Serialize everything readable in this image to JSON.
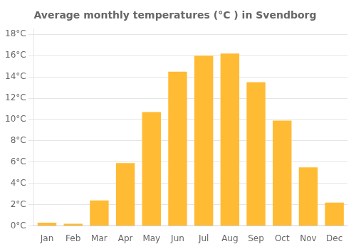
{
  "chart_data": {
    "type": "bar",
    "title": "Average monthly temperatures (°C ) in Svendborg",
    "categories": [
      "Jan",
      "Feb",
      "Mar",
      "Apr",
      "May",
      "Jun",
      "Jul",
      "Aug",
      "Sep",
      "Oct",
      "Nov",
      "Dec"
    ],
    "values": [
      0.3,
      0.2,
      2.4,
      5.9,
      10.7,
      14.5,
      16.0,
      16.2,
      13.5,
      9.9,
      5.5,
      2.2
    ],
    "color": "#FFBB33",
    "ylim": [
      0,
      18.5
    ],
    "yticks": [
      {
        "value": 0,
        "label": "0°C"
      },
      {
        "value": 2,
        "label": "2°C"
      },
      {
        "value": 4,
        "label": "4°C"
      },
      {
        "value": 6,
        "label": "6°C"
      },
      {
        "value": 8,
        "label": "8°C"
      },
      {
        "value": 10,
        "label": "10°C"
      },
      {
        "value": 12,
        "label": "12°C"
      },
      {
        "value": 14,
        "label": "14°C"
      },
      {
        "value": 16,
        "label": "16°C"
      },
      {
        "value": 18,
        "label": "18°C"
      }
    ],
    "grid": true
  }
}
